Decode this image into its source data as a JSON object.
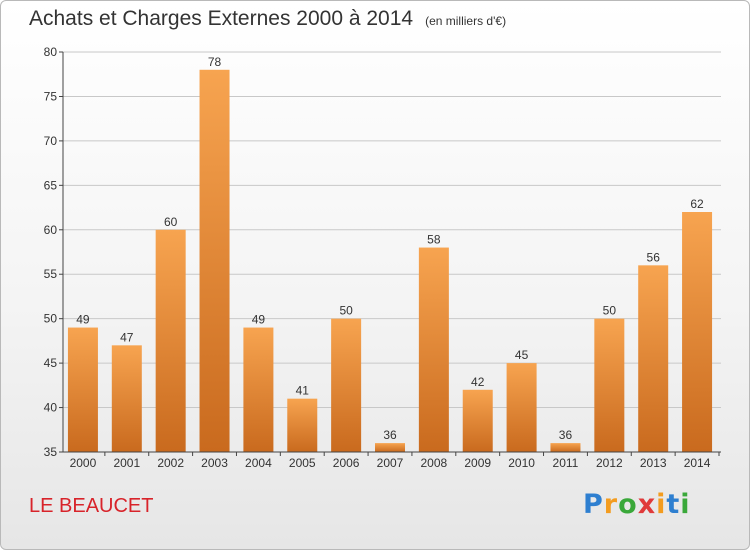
{
  "chart_data": {
    "type": "bar",
    "title": "Achats et Charges Externes 2000 à 2014",
    "subtitle": "(en milliers d'€)",
    "categories": [
      "2000",
      "2001",
      "2002",
      "2003",
      "2004",
      "2005",
      "2006",
      "2007",
      "2008",
      "2009",
      "2010",
      "2011",
      "2012",
      "2013",
      "2014"
    ],
    "values": [
      49,
      47,
      60,
      78,
      49,
      41,
      50,
      36,
      58,
      42,
      45,
      36,
      50,
      56,
      62
    ],
    "ylim": [
      35,
      80
    ],
    "yticks": [
      35,
      40,
      45,
      50,
      55,
      60,
      65,
      70,
      75,
      80
    ],
    "grid": true,
    "colors": {
      "bar_top": "#f7a450",
      "bar_bottom": "#c96a1e",
      "axis": "#444444",
      "grid": "#c8c8c8"
    }
  },
  "footer": {
    "location": "LE BEAUCET",
    "logo_text": "Proxiti",
    "logo_colors": [
      "#2e7fd0",
      "#f39c1f",
      "#3aa83a",
      "#e03a3a",
      "#f39c1f",
      "#2e7fd0",
      "#3aa83a"
    ]
  }
}
